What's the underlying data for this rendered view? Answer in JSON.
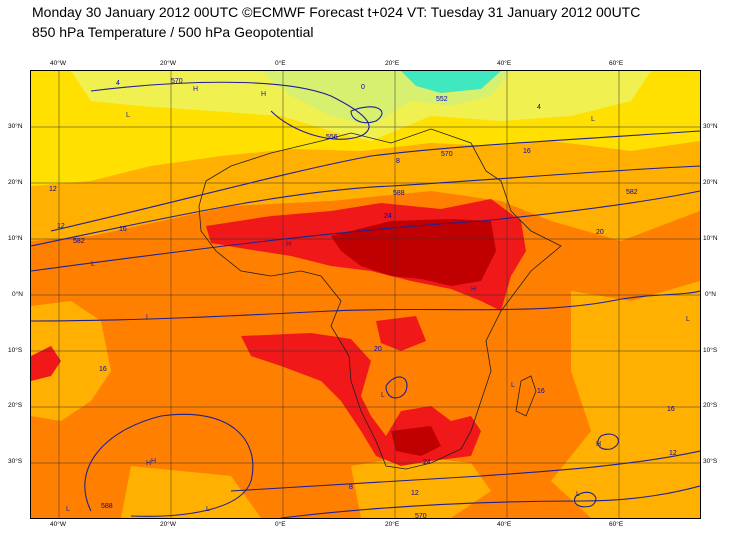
{
  "header": {
    "line1": "Monday 30 January 2012 00UTC ©ECMWF Forecast t+024 VT: Tuesday 31 January 2012 00UTC",
    "line2": "850 hPa Temperature / 500 hPa Geopotential"
  },
  "axes": {
    "lon_top": [
      "40°W",
      "20°W",
      "0°E",
      "20°E",
      "40°E",
      "60°E"
    ],
    "lon_bottom": [
      "40°W",
      "20°W",
      "0°E",
      "20°E",
      "40°E",
      "60°E"
    ],
    "lat_left": [
      "30°N",
      "20°N",
      "10°N",
      "0°N",
      "10°S",
      "20°S",
      "30°S"
    ],
    "lat_right": [
      "30°N",
      "20°N",
      "10°N",
      "0°N",
      "10°S",
      "20°S",
      "30°S"
    ]
  },
  "temperature_labels": [
    "4",
    "8",
    "12",
    "16",
    "16",
    "24",
    "20",
    "20",
    "16",
    "16",
    "12",
    "12",
    "24",
    "16",
    "8",
    "12",
    "4",
    "0"
  ],
  "geopotential_labels": [
    "570",
    "556",
    "570",
    "582",
    "582",
    "588",
    "570",
    "552",
    "588"
  ],
  "pressure_markers": [
    "H",
    "L",
    "H",
    "L",
    "H",
    "L",
    "L",
    "H",
    "L",
    "H",
    "L",
    "L",
    "H",
    "L",
    "L",
    "H",
    "L"
  ],
  "colors": {
    "temp_0_4": "#d8f070",
    "temp_4_8": "#f0f050",
    "temp_8_12": "#ffe000",
    "temp_12_16": "#ffb000",
    "temp_16_20": "#ff8000",
    "temp_20_24": "#f01818",
    "temp_24_28": "#c00000",
    "cold": "#40e8c0",
    "contour": "#202090",
    "label_blue": "#0000c0"
  }
}
